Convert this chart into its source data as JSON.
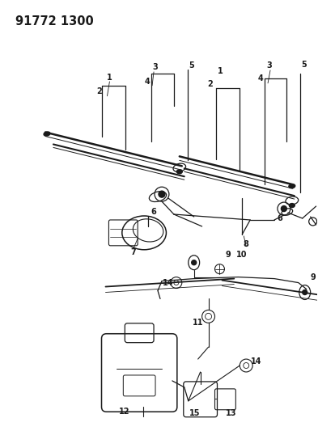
{
  "title": "91772 1300",
  "bg_color": "#ffffff",
  "line_color": "#1a1a1a",
  "title_fontsize": 10.5,
  "label_fontsize": 7,
  "fig_width": 3.93,
  "fig_height": 5.33,
  "dpi": 100
}
